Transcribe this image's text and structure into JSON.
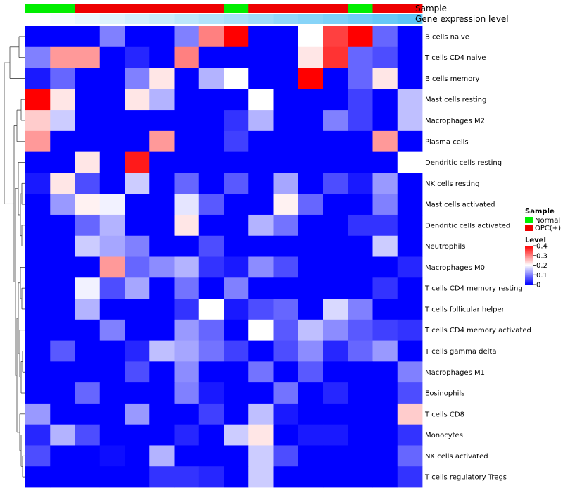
{
  "chart_data": {
    "type": "heatmap",
    "title": "",
    "rows": [
      "B cells naive",
      "T cells CD4 naive",
      "B cells memory",
      "Mast cells resting",
      "Macrophages M2",
      "Plasma cells",
      "Dendritic cells resting",
      "NK cells resting",
      "Mast cells activated",
      "Dendritic cells activated",
      "Neutrophils",
      "Macrophages M0",
      "T cells CD4 memory resting",
      "T cells follicular helper",
      "T cells CD4 memory activated",
      "T cells gamma delta",
      "Macrophages M1",
      "Eosinophils",
      "T cells CD8",
      "Monocytes",
      "NK cells activated",
      "T cells regulatory  Tregs"
    ],
    "columns": 16,
    "values": [
      [
        0,
        0,
        0,
        0.1,
        0,
        0,
        0.1,
        0.3,
        0.4,
        0,
        0,
        0.2,
        0.35,
        0.4,
        0.08,
        0
      ],
      [
        0.1,
        0.28,
        0.28,
        0,
        0.03,
        0,
        0.3,
        0,
        0,
        0,
        0,
        0.22,
        0.36,
        0.08,
        0.06,
        0
      ],
      [
        0.02,
        0.08,
        0,
        0,
        0.1,
        0.22,
        0,
        0.14,
        0.2,
        0,
        0,
        0.4,
        0,
        0.08,
        0.22,
        0
      ],
      [
        0.4,
        0.22,
        0,
        0,
        0.22,
        0.14,
        0,
        0,
        0,
        0.2,
        0,
        0,
        0,
        0.05,
        0,
        0.15
      ],
      [
        0.24,
        0.16,
        0,
        0,
        0,
        0,
        0,
        0,
        0.04,
        0.14,
        0,
        0,
        0.1,
        0.05,
        0,
        0.15
      ],
      [
        0.28,
        0,
        0,
        0,
        0,
        0.28,
        0,
        0,
        0.05,
        0,
        0,
        0,
        0,
        0,
        0.28,
        0
      ],
      [
        0,
        0,
        0.22,
        0,
        0.38,
        0,
        0,
        0,
        0,
        0,
        0,
        0,
        0,
        0,
        0,
        0.2
      ],
      [
        0.02,
        0.22,
        0.06,
        0,
        0.16,
        0,
        0.08,
        0,
        0.07,
        0,
        0.13,
        0,
        0.06,
        0.02,
        0.12,
        0
      ],
      [
        0,
        0.12,
        0.21,
        0.19,
        0,
        0,
        0.18,
        0.07,
        0,
        0,
        0.21,
        0.08,
        0,
        0,
        0.1,
        0
      ],
      [
        0,
        0,
        0.08,
        0.14,
        0,
        0,
        0.22,
        0,
        0,
        0.14,
        0.09,
        0,
        0,
        0.04,
        0.04,
        0
      ],
      [
        0,
        0,
        0.16,
        0.13,
        0.1,
        0,
        0,
        0.06,
        0,
        0,
        0,
        0,
        0,
        0,
        0.16,
        0
      ],
      [
        0,
        0,
        0,
        0.28,
        0.08,
        0.11,
        0.14,
        0.04,
        0.02,
        0.11,
        0.06,
        0,
        0,
        0,
        0,
        0.03
      ],
      [
        0,
        0,
        0.19,
        0.06,
        0.13,
        0,
        0.09,
        0,
        0.1,
        0,
        0,
        0,
        0,
        0,
        0.04,
        0
      ],
      [
        0,
        0,
        0.14,
        0,
        0,
        0,
        0.04,
        0.2,
        0.02,
        0.06,
        0.08,
        0,
        0.17,
        0.1,
        0,
        0
      ],
      [
        0,
        0,
        0,
        0.1,
        0,
        0,
        0.12,
        0.08,
        0,
        0.2,
        0.07,
        0.15,
        0.11,
        0.07,
        0.05,
        0.04
      ],
      [
        0,
        0.07,
        0,
        0,
        0.03,
        0.15,
        0.13,
        0.09,
        0.05,
        0,
        0.06,
        0.11,
        0.03,
        0.08,
        0.12,
        0
      ],
      [
        0,
        0,
        0,
        0,
        0.06,
        0,
        0.11,
        0,
        0,
        0.09,
        0,
        0.07,
        0,
        0,
        0,
        0.1
      ],
      [
        0,
        0,
        0.08,
        0,
        0,
        0,
        0.1,
        0.02,
        0,
        0,
        0.09,
        0,
        0.03,
        0,
        0,
        0.06
      ],
      [
        0.12,
        0,
        0,
        0,
        0.12,
        0,
        0,
        0.05,
        0,
        0.15,
        0.02,
        0,
        0,
        0,
        0,
        0.24
      ],
      [
        0.03,
        0.14,
        0.06,
        0,
        0,
        0,
        0.03,
        0,
        0.16,
        0.22,
        0,
        0.02,
        0.02,
        0,
        0,
        0.04
      ],
      [
        0.06,
        0,
        0,
        0.01,
        0,
        0.14,
        0,
        0,
        0,
        0.16,
        0.06,
        0,
        0,
        0,
        0,
        0.08
      ],
      [
        0,
        0,
        0,
        0,
        0,
        0.04,
        0.04,
        0.03,
        0,
        0.16,
        0,
        0,
        0,
        0,
        0,
        0.04
      ]
    ],
    "annotation_tracks": [
      {
        "name": "Sample",
        "values": [
          "Normal",
          "Normal",
          "OPC(+)",
          "OPC(+)",
          "OPC(+)",
          "OPC(+)",
          "OPC(+)",
          "OPC(+)",
          "Normal",
          "OPC(+)",
          "OPC(+)",
          "OPC(+)",
          "OPC(+)",
          "Normal",
          "OPC(+)",
          "OPC(+)"
        ]
      },
      {
        "name": "Gene expression level",
        "values": [
          0.0,
          0.07,
          0.13,
          0.2,
          0.27,
          0.33,
          0.4,
          0.47,
          0.53,
          0.6,
          0.67,
          0.73,
          0.8,
          0.87,
          0.93,
          1.0
        ]
      }
    ],
    "legend": {
      "sample_title": "Sample",
      "sample_items": [
        {
          "label": "Normal",
          "color": "#00ee00"
        },
        {
          "label": "OPC(+)",
          "color": "#ee0000"
        }
      ],
      "level_title": "Level",
      "level_ticks": [
        {
          "label": "0.4",
          "value": 0.4
        },
        {
          "label": "0.3",
          "value": 0.3
        },
        {
          "label": "0.2",
          "value": 0.2
        },
        {
          "label": "0.1",
          "value": 0.1
        },
        {
          "label": "0",
          "value": 0
        }
      ],
      "placement": "right"
    },
    "color_scale": {
      "low": "#0000ff",
      "mid": "#ffffff",
      "high": "#ff0000",
      "range": [
        0,
        0.4
      ]
    },
    "expression_track_colors": {
      "low": "#ffffff",
      "high": "#5bc4f6"
    }
  }
}
